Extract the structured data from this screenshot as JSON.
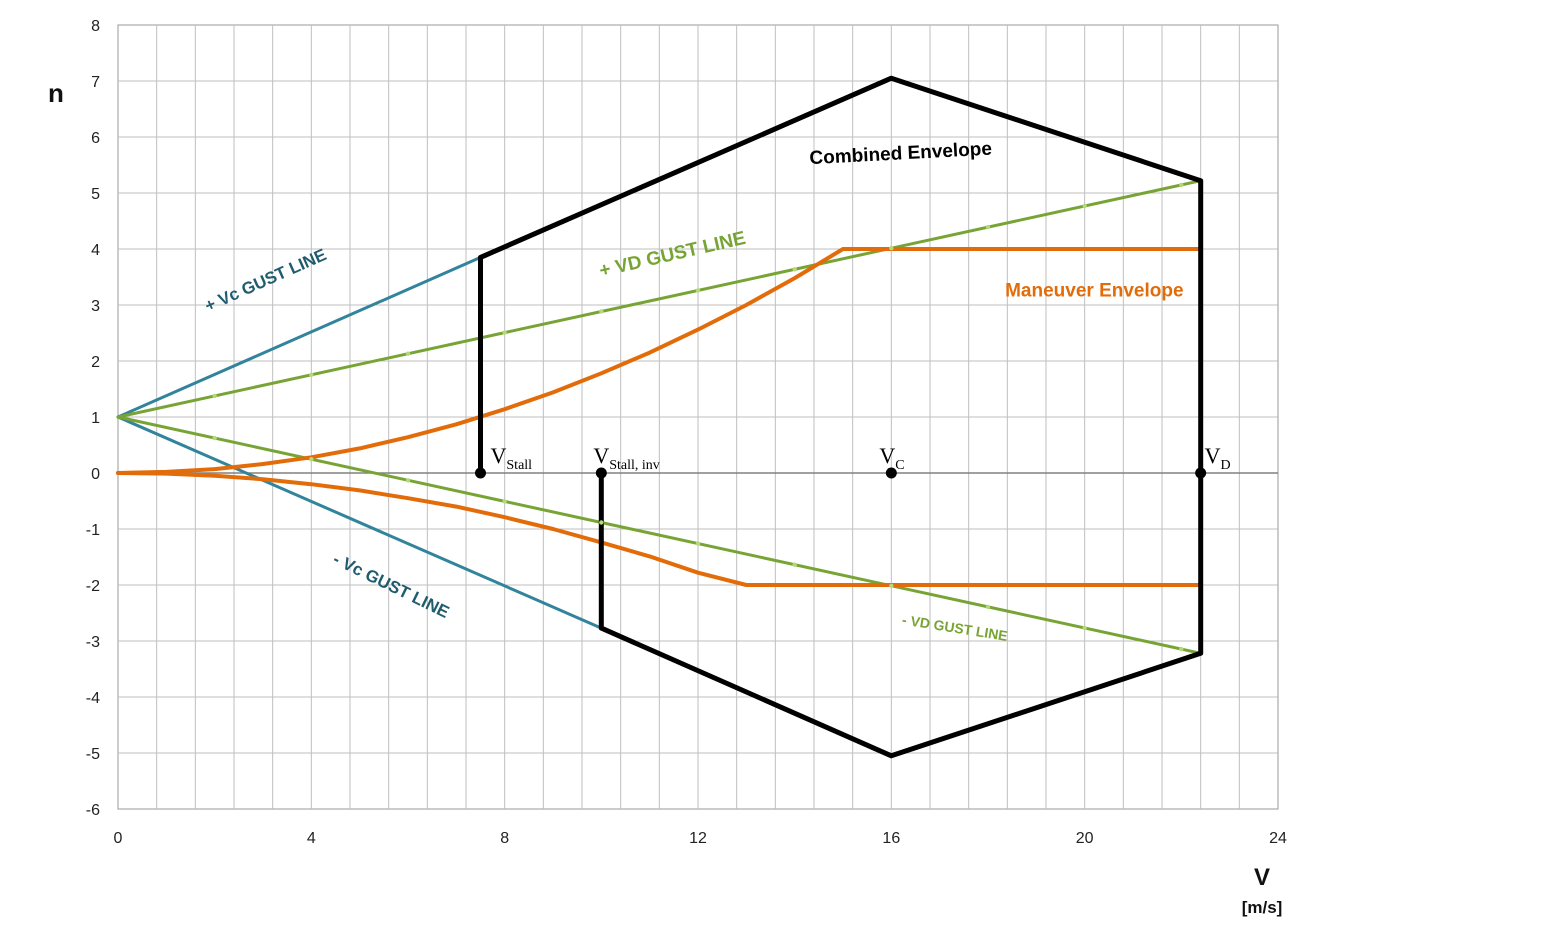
{
  "chart_data": {
    "type": "line",
    "title": "",
    "xlabel": "V",
    "xunit": "[m/s]",
    "ylabel": "n",
    "xlim": [
      0,
      24
    ],
    "ylim": [
      -6,
      8
    ],
    "x_ticks": [
      0,
      4,
      8,
      12,
      16,
      20,
      24
    ],
    "y_ticks": [
      8,
      7,
      6,
      5,
      4,
      3,
      2,
      1,
      0,
      -1,
      -2,
      -3,
      -4,
      -5,
      -6
    ],
    "grid": true,
    "minor_x_step": 0.8,
    "colors": {
      "vc_gust": "#31849B",
      "vd_gust": "#77A434",
      "maneuver": "#E36C0A",
      "combined": "#000000",
      "grid": "#BFBFBF"
    },
    "series": [
      {
        "key": "vc_gust_pos",
        "points": [
          [
            0,
            1
          ],
          [
            7.5,
            3.85
          ]
        ]
      },
      {
        "key": "vc_gust_neg",
        "points": [
          [
            0,
            1
          ],
          [
            10,
            -2.77
          ]
        ]
      },
      {
        "key": "vd_gust_pos",
        "points": [
          [
            0,
            1
          ],
          [
            22.4,
            5.22
          ]
        ]
      },
      {
        "key": "vd_gust_neg",
        "points": [
          [
            0,
            1
          ],
          [
            22.4,
            -3.22
          ]
        ]
      },
      {
        "key": "maneuver_pos",
        "points": [
          [
            0,
            0
          ],
          [
            1,
            0.02
          ],
          [
            2,
            0.07
          ],
          [
            3,
            0.16
          ],
          [
            4,
            0.28
          ],
          [
            5,
            0.44
          ],
          [
            6,
            0.64
          ],
          [
            7,
            0.87
          ],
          [
            8,
            1.14
          ],
          [
            9,
            1.44
          ],
          [
            10,
            1.78
          ],
          [
            11,
            2.15
          ],
          [
            12,
            2.56
          ],
          [
            13,
            3.0
          ],
          [
            14,
            3.48
          ],
          [
            15,
            4.0
          ],
          [
            22.4,
            4.0
          ]
        ]
      },
      {
        "key": "maneuver_neg",
        "points": [
          [
            0,
            0
          ],
          [
            1,
            -0.01
          ],
          [
            2,
            -0.05
          ],
          [
            3,
            -0.11
          ],
          [
            4,
            -0.2
          ],
          [
            5,
            -0.31
          ],
          [
            6,
            -0.45
          ],
          [
            7,
            -0.6
          ],
          [
            8,
            -0.79
          ],
          [
            9,
            -1.0
          ],
          [
            10,
            -1.24
          ],
          [
            11,
            -1.49
          ],
          [
            12,
            -1.78
          ],
          [
            13,
            -2.0
          ],
          [
            22.4,
            -2.0
          ]
        ]
      },
      {
        "key": "combined_envelope",
        "points": [
          [
            7.5,
            0
          ],
          [
            7.5,
            3.85
          ],
          [
            16,
            7.05
          ],
          [
            22.4,
            5.22
          ],
          [
            22.4,
            -3.22
          ],
          [
            16,
            -5.05
          ],
          [
            10,
            -2.77
          ],
          [
            10,
            0
          ]
        ]
      }
    ],
    "annotations": [
      {
        "key": "vc_gust_pos",
        "text": "+ Vc  GUST  LINE",
        "x": 3.1,
        "y": 3.35,
        "rotation": -24,
        "size": 17,
        "color": "#1F5C6E"
      },
      {
        "key": "vc_gust_neg",
        "text": "- Vc  GUST  LINE",
        "x": 5.6,
        "y": -2.1,
        "rotation": 26,
        "size": 17,
        "color": "#1F5C6E"
      },
      {
        "key": "vd_gust_pos",
        "text": "+ VD  GUST  LINE",
        "x": 11.5,
        "y": 3.8,
        "rotation": -13,
        "size": 19,
        "color": "#77A434"
      },
      {
        "key": "vd_gust_neg",
        "text": "- VD  GUST  LINE",
        "x": 17.3,
        "y": -2.85,
        "rotation": 9,
        "size": 14,
        "color": "#77A434"
      },
      {
        "key": "maneuver",
        "text": "Maneuver Envelope",
        "x": 20.2,
        "y": 3.15,
        "rotation": 0,
        "size": 19,
        "color": "#E36C0A"
      },
      {
        "key": "combined",
        "text": "Combined Envelope",
        "x": 16.2,
        "y": 5.6,
        "rotation": -3,
        "size": 19,
        "color": "#000000"
      }
    ],
    "speed_points": [
      {
        "x": 7.5,
        "y": 0,
        "label": "V",
        "sub": "Stall"
      },
      {
        "x": 10,
        "y": 0,
        "label": "V",
        "sub": "Stall, inv"
      },
      {
        "x": 16,
        "y": 0,
        "label": "V",
        "sub": "C"
      },
      {
        "x": 22.4,
        "y": 0,
        "label": "V",
        "sub": "D"
      }
    ]
  }
}
